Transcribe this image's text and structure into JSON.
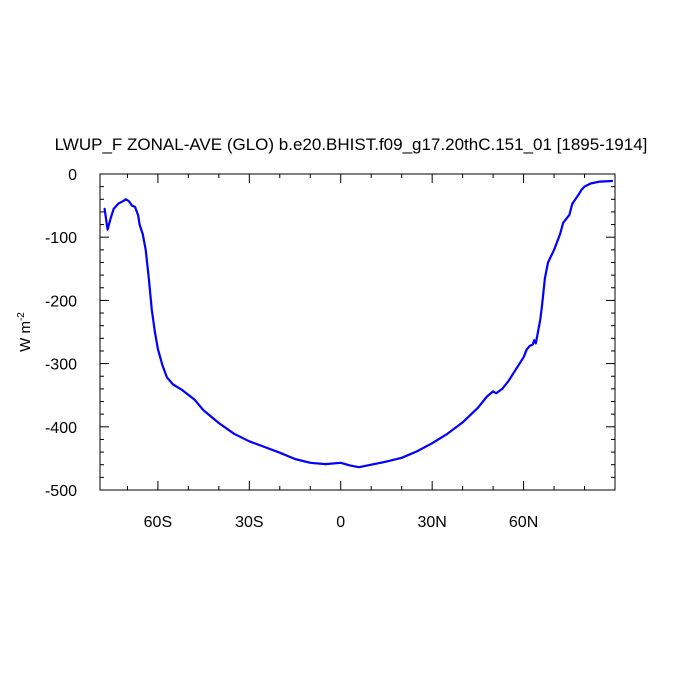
{
  "chart_data": {
    "type": "line",
    "title": "LWUP_F ZONAL-AVE (GLO) b.e20.BHIST.f09_g17.20thC.151_01 [1895-1914]",
    "xlabel": "",
    "ylabel": "W m",
    "ylabel_superscript": "-2",
    "xlim": [
      -79,
      90
    ],
    "ylim": [
      -500,
      0
    ],
    "x_ticks": [
      {
        "value": -60,
        "label": "60S"
      },
      {
        "value": -30,
        "label": "30S"
      },
      {
        "value": 0,
        "label": "0"
      },
      {
        "value": 30,
        "label": "30N"
      },
      {
        "value": 60,
        "label": "60N"
      }
    ],
    "y_ticks": [
      {
        "value": 0,
        "label": "0"
      },
      {
        "value": -100,
        "label": "-100"
      },
      {
        "value": -200,
        "label": "-200"
      },
      {
        "value": -300,
        "label": "-300"
      },
      {
        "value": -400,
        "label": "-400"
      },
      {
        "value": -500,
        "label": "-500"
      }
    ],
    "grid": false,
    "line_color": "#0000ff",
    "series": [
      {
        "x": [
          -77.5,
          -76.5,
          -75.5,
          -74.5,
          -73.0,
          -71.5,
          -70.5,
          -69.5,
          -68.5,
          -67.5,
          -66.5,
          -66.0,
          -65.0,
          -64.0,
          -63.0,
          -62.0,
          -61.0,
          -60.0,
          -58.5,
          -57.0,
          -55.0,
          -52.0,
          -48.0,
          -45.0,
          -40.0,
          -35.0,
          -30.0,
          -25.0,
          -20.0,
          -15.0,
          -10.0,
          -5.0,
          0.0,
          3.0,
          6.0,
          10.0,
          15.0,
          20.0,
          25.0,
          30.0,
          35.0,
          40.0,
          45.0,
          48.0,
          50.0,
          51.0,
          53.0,
          55.0,
          58.0,
          60.0,
          61.0,
          62.0,
          63.0,
          63.5,
          64.0,
          65.0,
          65.5,
          66.0,
          67.0,
          68.0,
          70.0,
          72.0,
          73.0,
          75.0,
          76.0,
          78.0,
          79.0,
          80.0,
          82.0,
          85.0,
          89.0
        ],
        "y": [
          -55,
          -88,
          -70,
          -55,
          -47,
          -43,
          -40,
          -43,
          -50,
          -52,
          -65,
          -80,
          -95,
          -120,
          -165,
          -215,
          -250,
          -277,
          -303,
          -322,
          -333,
          -342,
          -357,
          -374,
          -394,
          -411,
          -423,
          -432,
          -441,
          -451,
          -457,
          -459,
          -457,
          -461,
          -464,
          -460,
          -455,
          -449,
          -439,
          -426,
          -411,
          -393,
          -370,
          -352,
          -344,
          -347,
          -340,
          -328,
          -305,
          -290,
          -278,
          -272,
          -270,
          -263,
          -268,
          -243,
          -230,
          -210,
          -165,
          -140,
          -120,
          -95,
          -77,
          -65,
          -47,
          -33,
          -25,
          -20,
          -15,
          -12,
          -11
        ]
      }
    ]
  }
}
